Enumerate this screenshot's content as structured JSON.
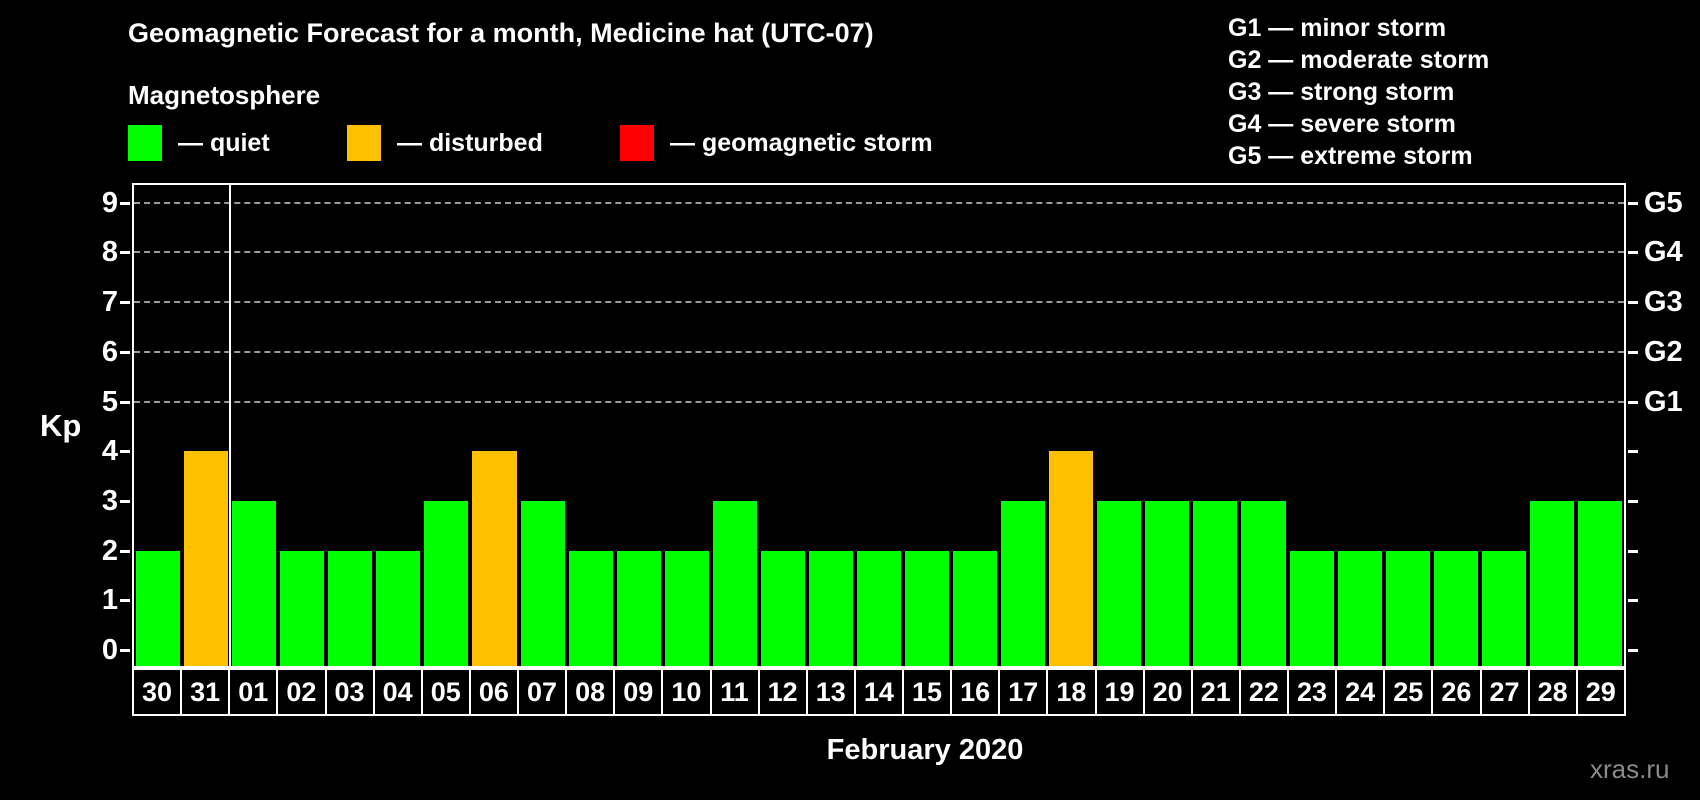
{
  "header": {
    "title": "Geomagnetic Forecast for a month, Medicine hat (UTC-07)"
  },
  "legend": {
    "title": "Magnetosphere",
    "items": [
      {
        "name": "quiet",
        "label": "— quiet",
        "color": "#00ff00"
      },
      {
        "name": "disturbed",
        "label": "— disturbed",
        "color": "#ffc000"
      },
      {
        "name": "storm",
        "label": "— geomagnetic storm",
        "color": "#ff0000"
      }
    ]
  },
  "g_scale": [
    {
      "label": "G1 — minor storm"
    },
    {
      "label": "G2 — moderate storm"
    },
    {
      "label": "G3 — strong storm"
    },
    {
      "label": "G4 — severe storm"
    },
    {
      "label": "G5 — extreme storm"
    }
  ],
  "chart_data": {
    "type": "bar",
    "title": "Geomagnetic Forecast for a month, Medicine hat (UTC-07)",
    "xlabel": "February 2020",
    "ylabel": "Kp",
    "ylim": [
      0,
      9.4
    ],
    "grid": "dashed horizontal lines at Kp 5-9 only",
    "yticks": [
      0,
      1,
      2,
      3,
      4,
      5,
      6,
      7,
      8,
      9
    ],
    "right_axis_labels": [
      {
        "kp": 5,
        "label": "G1"
      },
      {
        "kp": 6,
        "label": "G2"
      },
      {
        "kp": 7,
        "label": "G3"
      },
      {
        "kp": 8,
        "label": "G4"
      },
      {
        "kp": 9,
        "label": "G5"
      }
    ],
    "gridline_kp": [
      5,
      6,
      7,
      8,
      9
    ],
    "categories": [
      "30",
      "31",
      "01",
      "02",
      "03",
      "04",
      "05",
      "06",
      "07",
      "08",
      "09",
      "10",
      "11",
      "12",
      "13",
      "14",
      "15",
      "16",
      "17",
      "18",
      "19",
      "20",
      "21",
      "22",
      "23",
      "24",
      "25",
      "26",
      "27",
      "28",
      "29"
    ],
    "values": [
      2,
      4,
      3,
      2,
      2,
      2,
      3,
      4,
      3,
      2,
      2,
      2,
      3,
      2,
      2,
      2,
      2,
      2,
      3,
      4,
      3,
      3,
      3,
      3,
      2,
      2,
      2,
      2,
      2,
      3,
      3
    ],
    "statuses": [
      "quiet",
      "disturbed",
      "quiet",
      "quiet",
      "quiet",
      "quiet",
      "quiet",
      "disturbed",
      "quiet",
      "quiet",
      "quiet",
      "quiet",
      "quiet",
      "quiet",
      "quiet",
      "quiet",
      "quiet",
      "quiet",
      "quiet",
      "disturbed",
      "quiet",
      "quiet",
      "quiet",
      "quiet",
      "quiet",
      "quiet",
      "quiet",
      "quiet",
      "quiet",
      "quiet",
      "quiet"
    ],
    "month_separator_after_index": 1,
    "legend_position": "top-left"
  },
  "colors": {
    "background": "#000000",
    "quiet": "#00ff00",
    "disturbed": "#ffc000",
    "storm": "#ff0000",
    "axis": "#ffffff",
    "gridline": "#9a9a9a",
    "watermark": "#8a8a8a"
  },
  "watermark": "xras.ru"
}
